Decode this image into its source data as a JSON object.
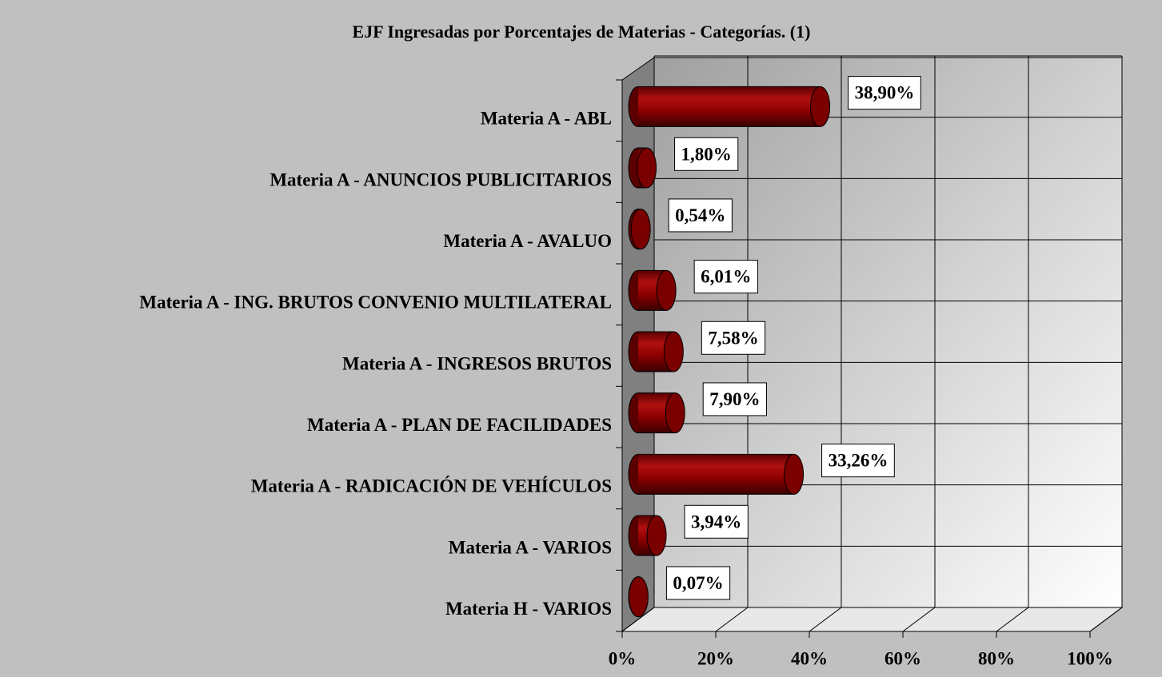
{
  "chart_data": {
    "type": "bar3d",
    "title": "EJF Ingresadas por Porcentajes de Materias - Categorías. (1)",
    "categories": [
      "Materia A - ABL",
      "Materia A - ANUNCIOS PUBLICITARIOS",
      "Materia A - AVALUO",
      "Materia A - ING. BRUTOS CONVENIO MULTILATERAL",
      "Materia A - INGRESOS BRUTOS",
      "Materia A - PLAN  DE  FACILIDADES",
      "Materia A - RADICACIÓN DE  VEHÍCULOS",
      "Materia A - VARIOS",
      "Materia H - VARIOS"
    ],
    "values": [
      38.9,
      1.8,
      0.54,
      6.01,
      7.58,
      7.9,
      33.26,
      3.94,
      0.07
    ],
    "value_labels": [
      "38,90%",
      "1,80%",
      "0,54%",
      "6,01%",
      "7,58%",
      "7,90%",
      "33,26%",
      "3,94%",
      "0,07%"
    ],
    "color": "#8b0000",
    "xlim": [
      0,
      100
    ],
    "xticks": [
      {
        "value": 0,
        "label": "0%"
      },
      {
        "value": 20,
        "label": "20%"
      },
      {
        "value": 40,
        "label": "40%"
      },
      {
        "value": 60,
        "label": "60%"
      },
      {
        "value": 80,
        "label": "80%"
      },
      {
        "value": 100,
        "label": "100%"
      }
    ],
    "grid": true
  }
}
